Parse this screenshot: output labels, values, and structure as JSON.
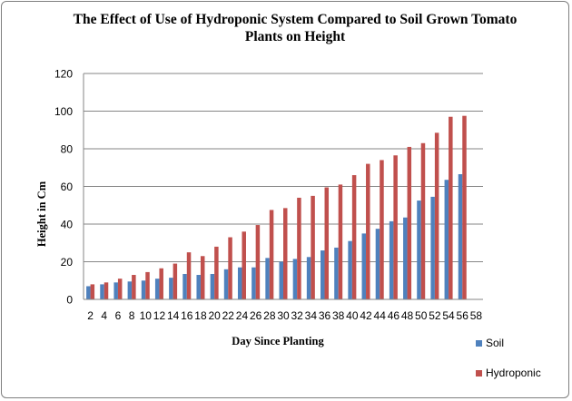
{
  "chart_data": {
    "type": "bar",
    "title_line1": "The Effect of Use of Hydroponic System Compared to Soil Grown Tomato",
    "title_line2": "Plants on Height",
    "xlabel": "Day Since Planting",
    "ylabel": "Height in Cm",
    "ylim": [
      0,
      120
    ],
    "yticks": [
      0,
      20,
      40,
      60,
      80,
      100,
      120
    ],
    "grid": true,
    "legend_position": "bottom-right",
    "categories": [
      "2",
      "4",
      "6",
      "8",
      "10",
      "12",
      "14",
      "16",
      "18",
      "20",
      "22",
      "24",
      "26",
      "28",
      "30",
      "32",
      "34",
      "36",
      "38",
      "40",
      "42",
      "44",
      "46",
      "48",
      "50",
      "52",
      "54",
      "56",
      "58"
    ],
    "series": [
      {
        "name": "Soil",
        "color": "#4f81bd",
        "values": [
          7,
          8,
          9,
          9.5,
          10,
          11,
          11.5,
          13.5,
          13,
          13.5,
          16,
          17,
          17,
          22,
          20,
          21.5,
          22.5,
          26,
          27.5,
          31,
          35,
          37.5,
          41.5,
          43.5,
          52.5,
          54.5,
          63.5,
          66.5,
          null
        ]
      },
      {
        "name": "Hydroponic",
        "color": "#c0504d",
        "values": [
          8,
          9,
          11,
          13,
          14.5,
          16.5,
          19,
          25,
          23,
          28,
          33,
          36,
          39.5,
          47.5,
          48.5,
          54,
          55,
          59.5,
          61,
          66,
          72,
          74,
          76.5,
          81,
          83,
          88.5,
          97,
          97.5,
          null
        ]
      }
    ]
  }
}
